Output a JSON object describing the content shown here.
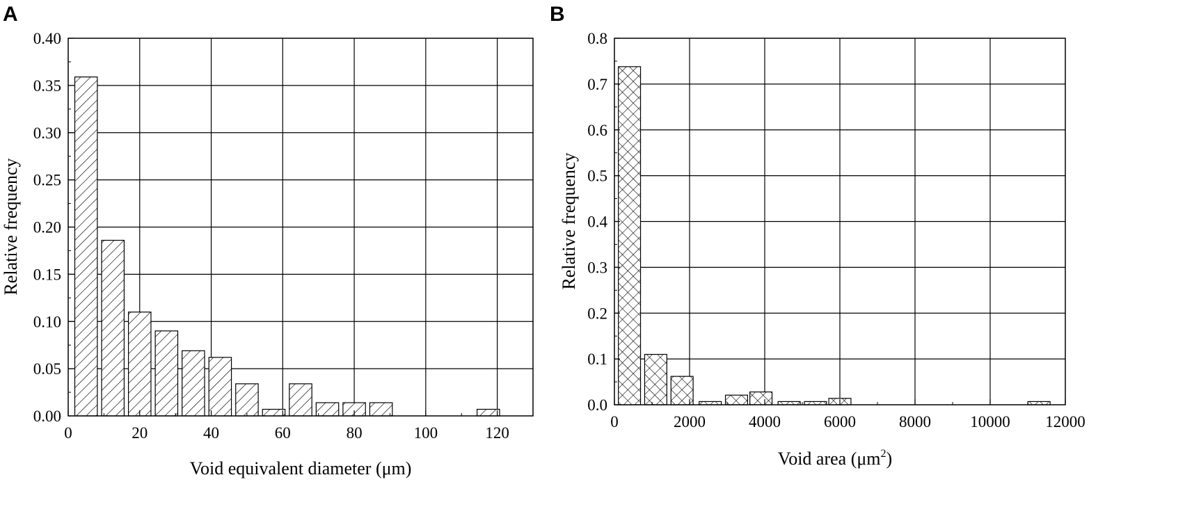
{
  "figure": {
    "panels": [
      "A",
      "B"
    ]
  },
  "chart_data": [
    {
      "panel": "A",
      "type": "bar",
      "xlabel": "Void equivalent diameter (μm)",
      "ylabel": "Relative frequency",
      "xlim": [
        0,
        130
      ],
      "ylim": [
        0,
        0.4
      ],
      "xticks": [
        0,
        20,
        40,
        60,
        80,
        100,
        120
      ],
      "xtick_labels": [
        "0",
        "20",
        "40",
        "60",
        "80",
        "100",
        "120"
      ],
      "yticks": [
        0.0,
        0.05,
        0.1,
        0.15,
        0.2,
        0.25,
        0.3,
        0.35,
        0.4
      ],
      "ytick_labels": [
        "0.00",
        "0.05",
        "0.10",
        "0.15",
        "0.20",
        "0.25",
        "0.30",
        "0.35",
        "0.40"
      ],
      "grid": true,
      "fill_pattern": "diagonal-hatch",
      "bar_width": 6.3,
      "x": [
        5,
        12.5,
        20,
        27.5,
        35,
        42.5,
        50,
        57.5,
        65,
        72.5,
        80,
        87.5,
        117.5
      ],
      "values": [
        0.359,
        0.186,
        0.11,
        0.09,
        0.069,
        0.062,
        0.034,
        0.007,
        0.034,
        0.014,
        0.014,
        0.014,
        0.007
      ]
    },
    {
      "panel": "B",
      "type": "bar",
      "xlabel": "Void area (μm²)",
      "xlabel_main": "Void area (μm",
      "xlabel_sup": "2",
      "xlabel_close": ")",
      "ylabel": "Relative frequency",
      "xlim": [
        0,
        12000
      ],
      "ylim": [
        0,
        0.8
      ],
      "xticks": [
        0,
        2000,
        4000,
        6000,
        8000,
        10000,
        12000
      ],
      "xtick_labels": [
        "0",
        "2000",
        "4000",
        "6000",
        "8000",
        "10000",
        "12000"
      ],
      "yticks": [
        0.0,
        0.1,
        0.2,
        0.3,
        0.4,
        0.5,
        0.6,
        0.7,
        0.8
      ],
      "ytick_labels": [
        "0.0",
        "0.1",
        "0.2",
        "0.3",
        "0.4",
        "0.5",
        "0.6",
        "0.7",
        "0.8"
      ],
      "grid": true,
      "fill_pattern": "cross-hatch",
      "bar_width": 590,
      "x": [
        400,
        1100,
        1800,
        2550,
        3250,
        3900,
        4650,
        5350,
        6000,
        11300
      ],
      "values": [
        0.738,
        0.11,
        0.062,
        0.007,
        0.021,
        0.028,
        0.007,
        0.007,
        0.014,
        0.007
      ]
    }
  ]
}
